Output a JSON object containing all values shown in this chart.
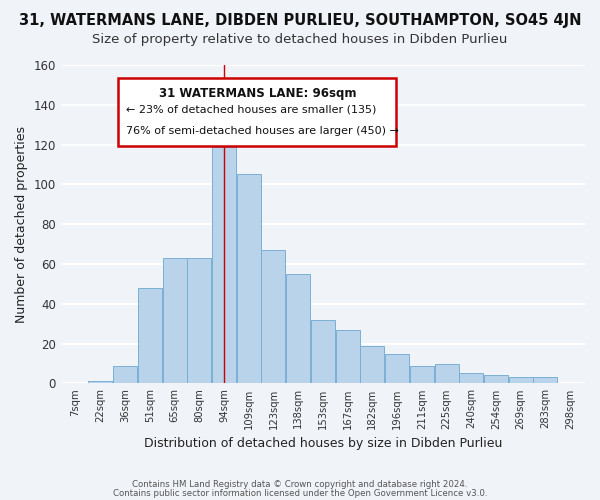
{
  "title": "31, WATERMANS LANE, DIBDEN PURLIEU, SOUTHAMPTON, SO45 4JN",
  "subtitle": "Size of property relative to detached houses in Dibden Purlieu",
  "xlabel": "Distribution of detached houses by size in Dibden Purlieu",
  "ylabel": "Number of detached properties",
  "footer_line1": "Contains HM Land Registry data © Crown copyright and database right 2024.",
  "footer_line2": "Contains public sector information licensed under the Open Government Licence v3.0.",
  "bin_labels": [
    "7sqm",
    "22sqm",
    "36sqm",
    "51sqm",
    "65sqm",
    "80sqm",
    "94sqm",
    "109sqm",
    "123sqm",
    "138sqm",
    "153sqm",
    "167sqm",
    "182sqm",
    "196sqm",
    "211sqm",
    "225sqm",
    "240sqm",
    "254sqm",
    "269sqm",
    "283sqm",
    "298sqm"
  ],
  "bar_heights": [
    0,
    1,
    9,
    48,
    63,
    63,
    119,
    105,
    67,
    55,
    32,
    27,
    19,
    15,
    9,
    10,
    5,
    4,
    3,
    3,
    0
  ],
  "bar_color": "#b8d3ea",
  "bar_edge_color": "#7aafd4",
  "highlight_bar_index": 6,
  "annotation_title": "31 WATERMANS LANE: 96sqm",
  "annotation_line2": "← 23% of detached houses are smaller (135)",
  "annotation_line3": "76% of semi-detached houses are larger (450) →",
  "annotation_box_color": "#ffffff",
  "annotation_box_edge": "#cc0000",
  "vline_color": "#cc0000",
  "ylim": [
    0,
    160
  ],
  "yticks": [
    0,
    20,
    40,
    60,
    80,
    100,
    120,
    140,
    160
  ],
  "background_color": "#f0f4f8",
  "grid_color": "#ffffff",
  "title_fontsize": 10.5,
  "subtitle_fontsize": 9.5
}
